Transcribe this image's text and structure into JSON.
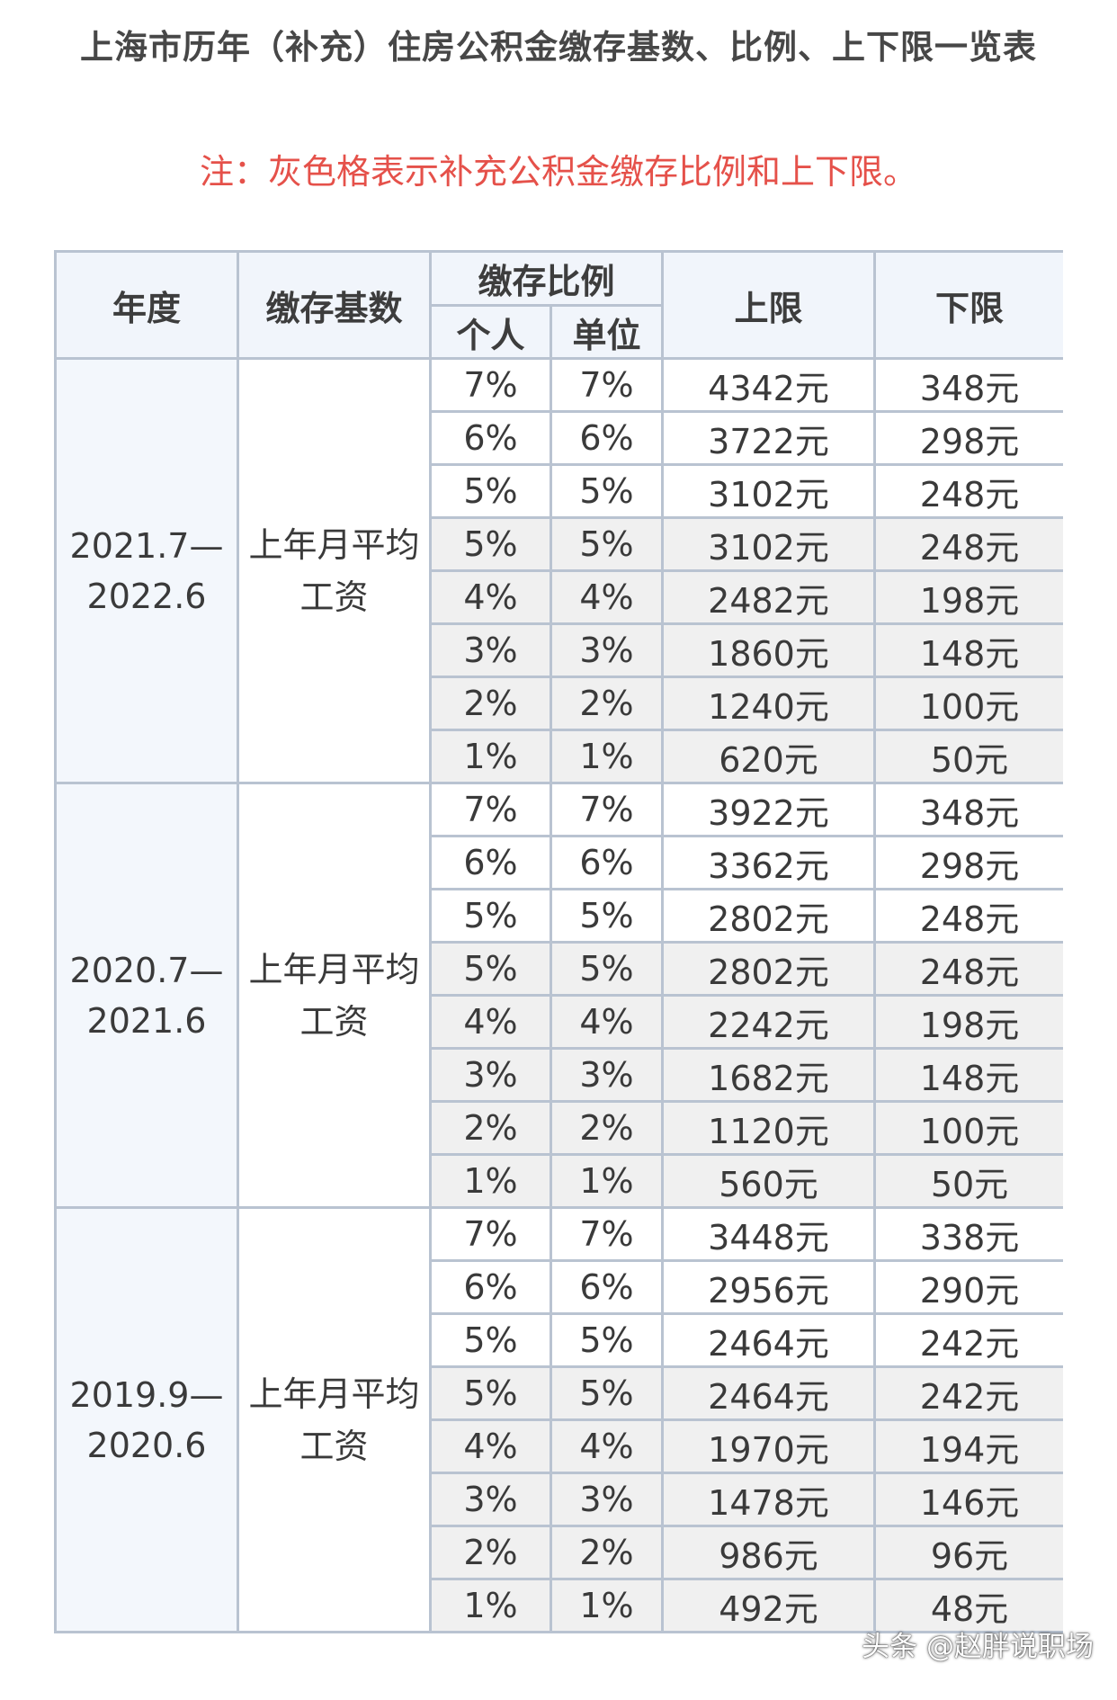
{
  "title": "上海市历年（补充）住房公积金缴存基数、比例、上下限一览表",
  "note": "注：灰色格表示补充公积金缴存比例和上下限。",
  "table": {
    "headers": {
      "year": "年度",
      "base": "缴存基数",
      "ratio": "缴存比例",
      "personal": "个人",
      "unit": "单位",
      "upper": "上限",
      "lower": "下限"
    },
    "groups": [
      {
        "year_start": "2021.7—",
        "year_end": "2022.6",
        "base_line1": "上年月平均",
        "base_line2": "工资",
        "rows": [
          {
            "personal": "7%",
            "unit": "7%",
            "upper": "4342元",
            "lower": "348元",
            "shade": "white"
          },
          {
            "personal": "6%",
            "unit": "6%",
            "upper": "3722元",
            "lower": "298元",
            "shade": "white"
          },
          {
            "personal": "5%",
            "unit": "5%",
            "upper": "3102元",
            "lower": "248元",
            "shade": "white"
          },
          {
            "personal": "5%",
            "unit": "5%",
            "upper": "3102元",
            "lower": "248元",
            "shade": "gray"
          },
          {
            "personal": "4%",
            "unit": "4%",
            "upper": "2482元",
            "lower": "198元",
            "shade": "gray"
          },
          {
            "personal": "3%",
            "unit": "3%",
            "upper": "1860元",
            "lower": "148元",
            "shade": "gray"
          },
          {
            "personal": "2%",
            "unit": "2%",
            "upper": "1240元",
            "lower": "100元",
            "shade": "gray"
          },
          {
            "personal": "1%",
            "unit": "1%",
            "upper": "620元",
            "lower": "50元",
            "shade": "gray"
          }
        ]
      },
      {
        "year_start": "2020.7—",
        "year_end": "2021.6",
        "base_line1": "上年月平均",
        "base_line2": "工资",
        "rows": [
          {
            "personal": "7%",
            "unit": "7%",
            "upper": "3922元",
            "lower": "348元",
            "shade": "white"
          },
          {
            "personal": "6%",
            "unit": "6%",
            "upper": "3362元",
            "lower": "298元",
            "shade": "white"
          },
          {
            "personal": "5%",
            "unit": "5%",
            "upper": "2802元",
            "lower": "248元",
            "shade": "white"
          },
          {
            "personal": "5%",
            "unit": "5%",
            "upper": "2802元",
            "lower": "248元",
            "shade": "gray"
          },
          {
            "personal": "4%",
            "unit": "4%",
            "upper": "2242元",
            "lower": "198元",
            "shade": "gray"
          },
          {
            "personal": "3%",
            "unit": "3%",
            "upper": "1682元",
            "lower": "148元",
            "shade": "gray"
          },
          {
            "personal": "2%",
            "unit": "2%",
            "upper": "1120元",
            "lower": "100元",
            "shade": "gray"
          },
          {
            "personal": "1%",
            "unit": "1%",
            "upper": "560元",
            "lower": "50元",
            "shade": "gray"
          }
        ]
      },
      {
        "year_start": "2019.9—",
        "year_end": "2020.6",
        "base_line1": "上年月平均",
        "base_line2": "工资",
        "rows": [
          {
            "personal": "7%",
            "unit": "7%",
            "upper": "3448元",
            "lower": "338元",
            "shade": "white"
          },
          {
            "personal": "6%",
            "unit": "6%",
            "upper": "2956元",
            "lower": "290元",
            "shade": "white"
          },
          {
            "personal": "5%",
            "unit": "5%",
            "upper": "2464元",
            "lower": "242元",
            "shade": "white"
          },
          {
            "personal": "5%",
            "unit": "5%",
            "upper": "2464元",
            "lower": "242元",
            "shade": "gray"
          },
          {
            "personal": "4%",
            "unit": "4%",
            "upper": "1970元",
            "lower": "194元",
            "shade": "gray"
          },
          {
            "personal": "3%",
            "unit": "3%",
            "upper": "1478元",
            "lower": "146元",
            "shade": "gray"
          },
          {
            "personal": "2%",
            "unit": "2%",
            "upper": "986元",
            "lower": "96元",
            "shade": "gray"
          },
          {
            "personal": "1%",
            "unit": "1%",
            "upper": "492元",
            "lower": "48元",
            "shade": "gray"
          }
        ]
      }
    ]
  },
  "watermark": "头条 @赵胖说职场"
}
